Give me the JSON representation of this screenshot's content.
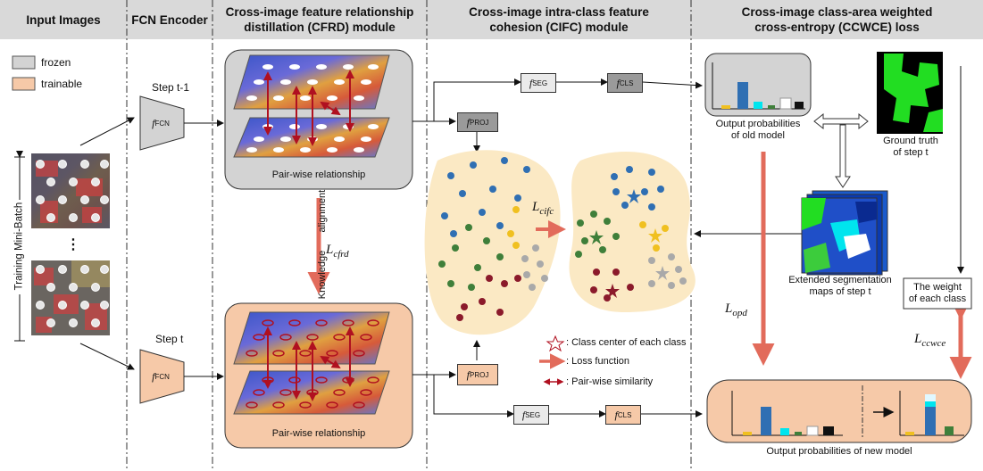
{
  "headers": {
    "input_images": "Input Images",
    "fcn_encoder": "FCN Encoder",
    "cfrd": "Cross-image feature relationship\ndistillation (CFRD) module",
    "cifc": "Cross-image intra-class feature\ncohesion (CIFC) module",
    "ccwce": "Cross-image class-area weighted\ncross-entropy (CCWCE) loss"
  },
  "legend_state": {
    "frozen": "frozen",
    "trainable": "trainable"
  },
  "left": {
    "batch_label": "Training Mini-Batch",
    "ellipsis": "⋮"
  },
  "steps": {
    "prev": "Step t-1",
    "curr": "Step t"
  },
  "functions": {
    "f": "f",
    "fcn": "FCN",
    "seg": "SEG",
    "cls": "CLS",
    "proj": "PROJ"
  },
  "cfrd": {
    "pairwise_top": "Pair-wise relationship",
    "pairwise_bottom": "Pair-wise relationship",
    "knowledge": "Knowledge",
    "alignment": "alignment"
  },
  "losses": {
    "L": "L",
    "cfrd": "cfrd",
    "cifc": "cifc",
    "opd": "opd",
    "ccwce": "ccwce"
  },
  "legend": {
    "class_center": ": Class center of each class",
    "loss_function": ": Loss function",
    "pairwise_similarity": ": Pair-wise similarity"
  },
  "ccwce": {
    "out_old": "Output probabilities\nof old model",
    "ground_truth": "Ground truth\nof step t",
    "extended_maps": "Extended segmentation\nmaps of step t",
    "class_weight": "The weight\nof each class",
    "out_new": "Output probabilities of new model"
  },
  "colors": {
    "frozen": "#d3d3d3",
    "trainable": "#f6c9a8",
    "loss_arrow": "#e26b5b",
    "cluster_bg": "#fbe9c4",
    "blue": "#2f6fb3",
    "green": "#3f7f3a",
    "yellow": "#f0c020",
    "red": "#8b1a2b",
    "gray": "#a9a9a9",
    "gt_green": "#22dd22"
  },
  "icons": [
    "star-icon",
    "loss-arrow-icon",
    "pairwise-arrow-icon"
  ]
}
